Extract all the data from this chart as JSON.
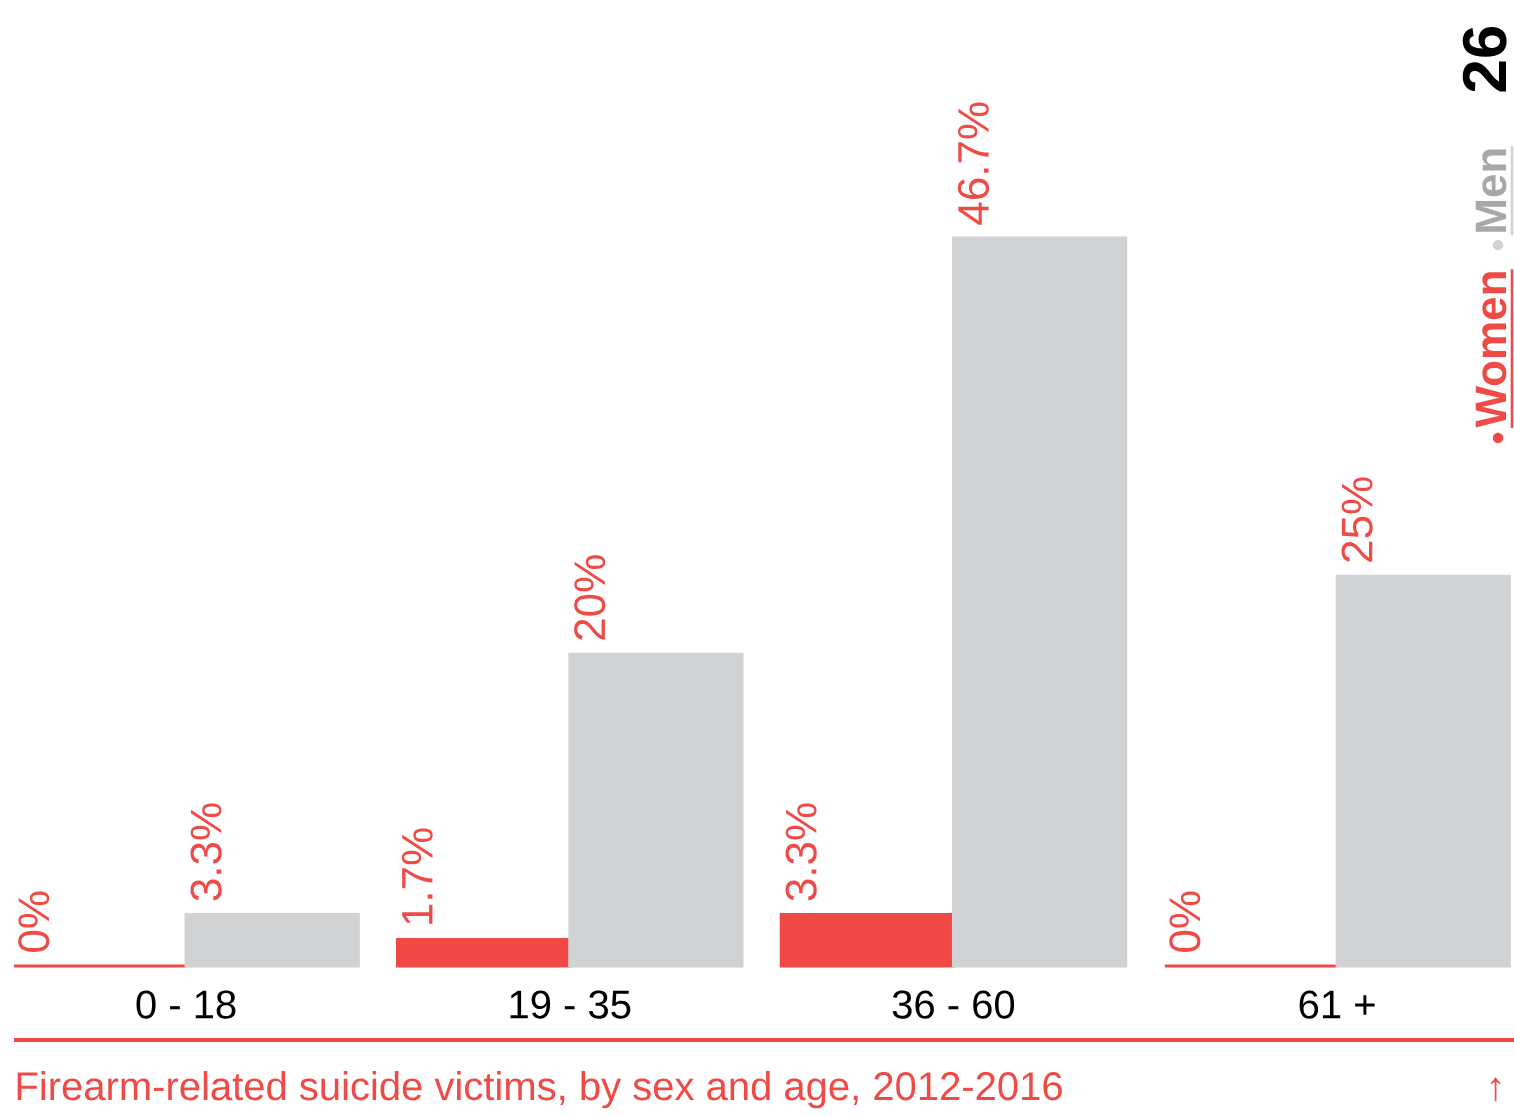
{
  "chart_data": {
    "type": "bar",
    "title": "Firearm-related suicide victims, by sex and age, 2012-2016",
    "categories": [
      "0 - 18",
      "19 - 35",
      "36 - 60",
      "61 +"
    ],
    "series": [
      {
        "name": "Women",
        "color": "#ef4a46",
        "values": [
          0,
          1.7,
          3.3,
          0
        ],
        "value_labels": [
          "0%",
          "1.7%",
          "3.3%",
          "0%"
        ]
      },
      {
        "name": "Men",
        "color": "#d1d2d4",
        "values": [
          3.3,
          20,
          46.7,
          25
        ],
        "value_labels": [
          "3.3%",
          "20%",
          "46.7%",
          "25%"
        ]
      }
    ],
    "legend": "top right",
    "annotations": [
      "26",
      "↑"
    ]
  }
}
